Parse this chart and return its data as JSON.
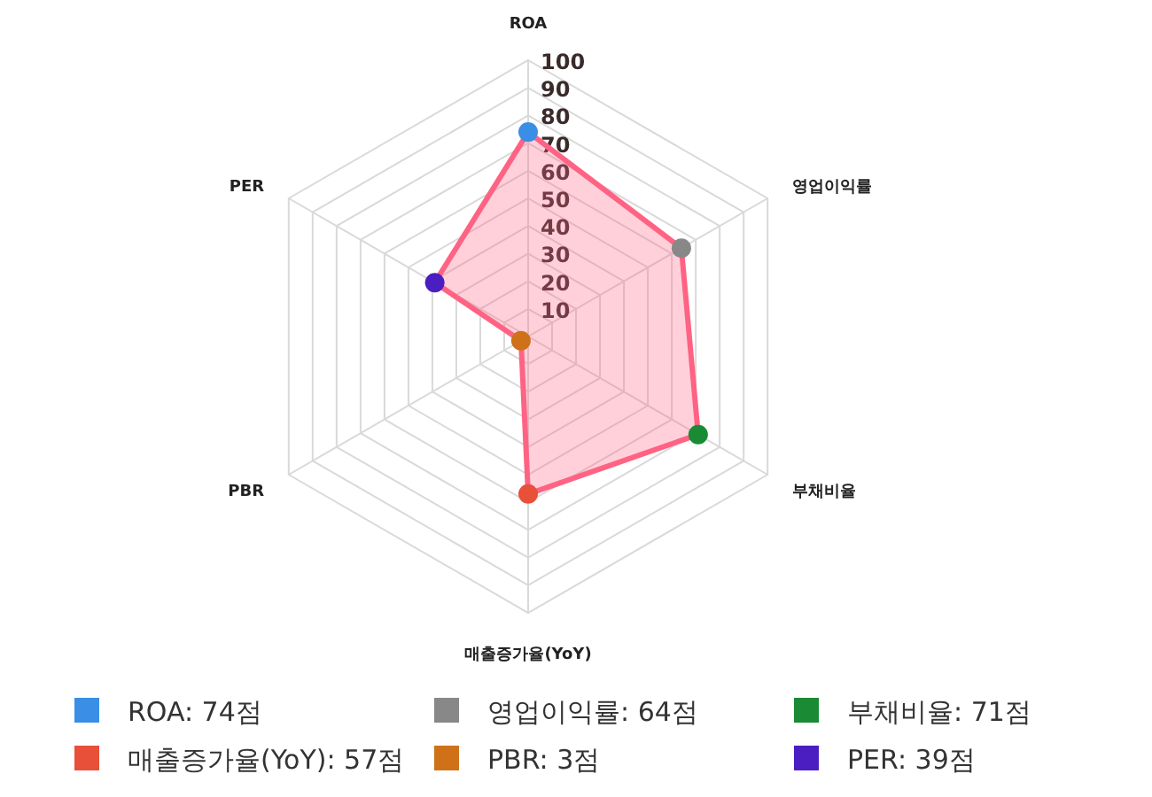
{
  "chart_data": {
    "type": "radar",
    "categories": [
      "ROA",
      "영업이익률",
      "부채비율",
      "매출증가율(YoY)",
      "PBR",
      "PER"
    ],
    "series": [
      {
        "color": "#ff6384",
        "values": [
          74,
          64,
          71,
          57,
          3,
          39
        ],
        "colors": [
          "#3a8ee6",
          "#888888",
          "#1a8a34",
          "#e8503a",
          "#cf7118",
          "#4a1ec0"
        ]
      }
    ],
    "annotations": [
      "ROA: 74점",
      "영업이익률: 64점",
      "부채비율: 71점",
      "매출증가율(YoY): 57점",
      "PBR: 3점",
      "PER: 39점"
    ],
    "ylim": [
      0,
      100
    ],
    "yticks": [
      10,
      20,
      30,
      40,
      50,
      60,
      70,
      80,
      90,
      100
    ],
    "grid": true,
    "marker": "circle"
  }
}
